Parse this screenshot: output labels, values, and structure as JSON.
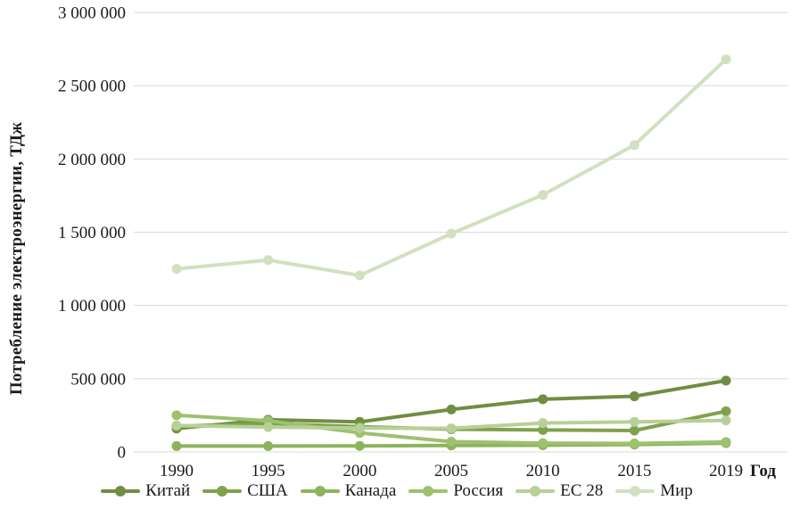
{
  "chart": {
    "y_axis_title": "Потребление электроэнергии, ТДж",
    "x_axis_title": "Год",
    "grid_color": "#d9d9d9",
    "text_color": "#1a1a1a",
    "y_ticks": [
      {
        "value": 0,
        "label": "0"
      },
      {
        "value": 500000,
        "label": "500 000"
      },
      {
        "value": 1000000,
        "label": "1 000 000"
      },
      {
        "value": 1500000,
        "label": "1 500 000"
      },
      {
        "value": 2000000,
        "label": "2 000 000"
      },
      {
        "value": 2500000,
        "label": "2 500 000"
      },
      {
        "value": 3000000,
        "label": "3 000 000"
      }
    ]
  },
  "chart_data": {
    "type": "line",
    "title": "",
    "xlabel": "Год",
    "ylabel": "Потребление электроэнергии, ТДж",
    "categories": [
      "1990",
      "1995",
      "2000",
      "2005",
      "2010",
      "2015",
      "2019"
    ],
    "ylim": [
      0,
      3000000
    ],
    "y_tick_step": 500000,
    "grid": "horizontal-only",
    "legend_position": "bottom",
    "marker": "circle",
    "series": [
      {
        "name": "Китай",
        "color": "#6f8e41",
        "values": [
          160000,
          220000,
          205000,
          290000,
          360000,
          380000,
          487000
        ]
      },
      {
        "name": "США",
        "color": "#7ea24b",
        "values": [
          175000,
          195000,
          172000,
          155000,
          150000,
          146000,
          278000
        ]
      },
      {
        "name": "Канада",
        "color": "#8db45c",
        "values": [
          40000,
          40000,
          41000,
          44000,
          46000,
          50000,
          60000
        ]
      },
      {
        "name": "Россия",
        "color": "#9dc16f",
        "values": [
          250000,
          213000,
          130000,
          70000,
          60000,
          58000,
          68000
        ]
      },
      {
        "name": "ЕС 28",
        "color": "#b7d097",
        "values": [
          180000,
          170000,
          163000,
          161000,
          197000,
          205000,
          215000
        ]
      },
      {
        "name": "Мир",
        "color": "#d2e0bf",
        "values": [
          1250000,
          1310000,
          1205000,
          1490000,
          1755000,
          2095000,
          2680000
        ]
      }
    ]
  }
}
